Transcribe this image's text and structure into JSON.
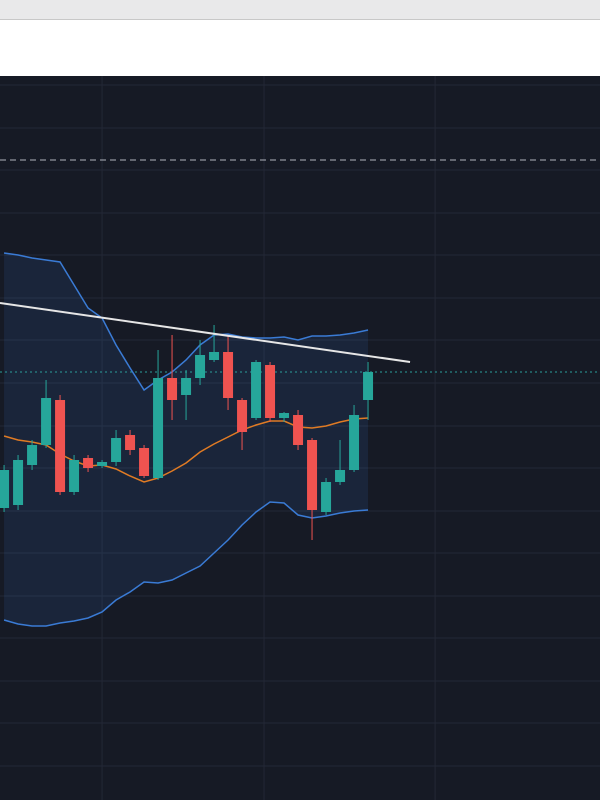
{
  "chart_data": {
    "type": "candlestick",
    "x": [
      0,
      1,
      2,
      3,
      4,
      5,
      6,
      7,
      8,
      9,
      10,
      11,
      12,
      13,
      14,
      15,
      16,
      17,
      18,
      19,
      20,
      21,
      22,
      23,
      24,
      25,
      26
    ],
    "open": [
      292,
      295,
      335,
      355,
      400,
      308,
      342,
      334,
      338,
      365,
      352,
      322,
      422,
      405,
      422,
      440,
      448,
      400,
      382,
      435,
      382,
      385,
      360,
      288,
      318,
      330,
      400
    ],
    "high": [
      335,
      345,
      360,
      420,
      405,
      345,
      345,
      340,
      370,
      370,
      355,
      450,
      465,
      430,
      460,
      475,
      465,
      402,
      440,
      438,
      388,
      390,
      362,
      322,
      360,
      395,
      438
    ],
    "low": [
      288,
      290,
      330,
      352,
      305,
      305,
      328,
      332,
      334,
      345,
      322,
      320,
      380,
      380,
      415,
      438,
      390,
      350,
      380,
      378,
      378,
      350,
      260,
      285,
      315,
      328,
      380
    ],
    "close": [
      330,
      340,
      355,
      402,
      308,
      340,
      332,
      338,
      362,
      350,
      324,
      422,
      400,
      422,
      445,
      448,
      402,
      368,
      438,
      382,
      387,
      355,
      290,
      318,
      330,
      385,
      428
    ],
    "up_color": "#26a69a",
    "down_color": "#ef5350",
    "series": [
      {
        "color": "#3a7bd5",
        "values": [
          547,
          545,
          542,
          540,
          538,
          515,
          492,
          482,
          455,
          432,
          410,
          420,
          428,
          440,
          455,
          465,
          466,
          463,
          462,
          462,
          463,
          460,
          464,
          464,
          465,
          467,
          470
        ]
      },
      {
        "color": "#3a7bd5",
        "values": [
          180,
          176,
          174,
          174,
          177,
          179,
          182,
          188,
          200,
          208,
          218,
          217,
          220,
          227,
          234,
          247,
          260,
          275,
          288,
          298,
          297,
          285,
          282,
          284,
          287,
          289,
          290
        ]
      },
      {
        "color": "#e07b24",
        "values": [
          364,
          360,
          358,
          355,
          346,
          339,
          334,
          335,
          331,
          324,
          318,
          322,
          329,
          337,
          348,
          356,
          363,
          370,
          375,
          379,
          379,
          373,
          372,
          374,
          378,
          381,
          382
        ]
      }
    ],
    "trendline": {
      "color": "#e6e6e6",
      "x": [
        -0.29,
        29
      ],
      "values": [
        497,
        438
      ]
    },
    "hlines": [
      {
        "value": 640,
        "color": "#b0b4bd",
        "style": "dashed"
      },
      {
        "value": 428,
        "color": "#2a9d9a",
        "style": "dotted"
      }
    ],
    "xlim": [
      -0.29,
      42.57
    ],
    "xticks": [
      7,
      18.57,
      30.79
    ],
    "ylim": [
      0,
      720
    ],
    "yticks": [
      34,
      77,
      119,
      162,
      204,
      247,
      289,
      332,
      374,
      417,
      460,
      502,
      545,
      587,
      630,
      672,
      715
    ],
    "grid": true
  }
}
